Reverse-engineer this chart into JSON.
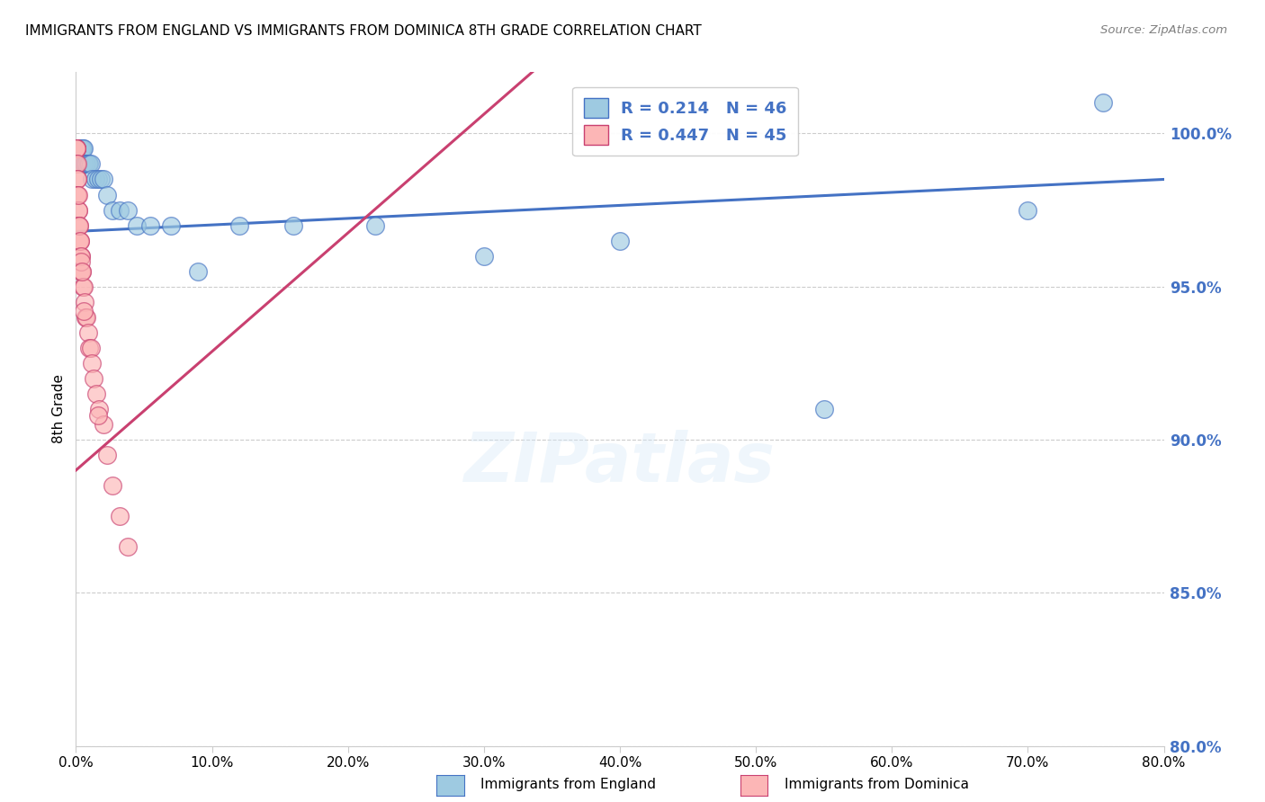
{
  "title": "IMMIGRANTS FROM ENGLAND VS IMMIGRANTS FROM DOMINICA 8TH GRADE CORRELATION CHART",
  "source": "Source: ZipAtlas.com",
  "ylabel": "8th Grade",
  "legend_label1": "Immigrants from England",
  "legend_label2": "Immigrants from Dominica",
  "R1": 0.214,
  "N1": 46,
  "R2": 0.447,
  "N2": 45,
  "color_england": "#9ecae1",
  "color_dominica": "#fcb6b6",
  "edge_england": "#4472c4",
  "edge_dominica": "#c94070",
  "trendline_england": "#4472c4",
  "trendline_dominica": "#c94070",
  "xlim": [
    0,
    80
  ],
  "ylim": [
    80,
    102
  ],
  "xticks": [
    0,
    10,
    20,
    30,
    40,
    50,
    60,
    70,
    80
  ],
  "yticks": [
    80,
    85,
    90,
    95,
    100
  ],
  "england_x": [
    0.05,
    0.08,
    0.1,
    0.12,
    0.15,
    0.18,
    0.2,
    0.22,
    0.25,
    0.28,
    0.3,
    0.33,
    0.35,
    0.38,
    0.4,
    0.45,
    0.5,
    0.55,
    0.6,
    0.65,
    0.7,
    0.8,
    0.9,
    1.0,
    1.1,
    1.2,
    1.4,
    1.6,
    1.8,
    2.0,
    2.3,
    2.7,
    3.2,
    3.8,
    4.5,
    5.5,
    7.0,
    9.0,
    12.0,
    16.0,
    22.0,
    30.0,
    40.0,
    55.0,
    70.0,
    75.5
  ],
  "england_y": [
    99.5,
    99.5,
    99.5,
    99.5,
    99.5,
    99.5,
    99.5,
    99.5,
    99.5,
    99.5,
    99.5,
    99.5,
    99.5,
    99.5,
    99.5,
    99.5,
    99.5,
    99.5,
    99.0,
    99.0,
    99.0,
    99.0,
    99.0,
    99.0,
    99.0,
    98.5,
    98.5,
    98.5,
    98.5,
    98.5,
    98.0,
    97.5,
    97.5,
    97.5,
    97.0,
    97.0,
    97.0,
    95.5,
    97.0,
    97.0,
    97.0,
    96.0,
    96.5,
    91.0,
    97.5,
    101.0
  ],
  "dominica_x": [
    0.02,
    0.04,
    0.05,
    0.06,
    0.07,
    0.08,
    0.09,
    0.1,
    0.12,
    0.14,
    0.16,
    0.18,
    0.2,
    0.22,
    0.25,
    0.28,
    0.32,
    0.36,
    0.4,
    0.45,
    0.5,
    0.55,
    0.62,
    0.7,
    0.8,
    0.9,
    1.0,
    1.1,
    1.2,
    1.3,
    1.5,
    1.7,
    2.0,
    2.3,
    2.7,
    3.2,
    3.8,
    0.15,
    0.25,
    0.3,
    0.35,
    0.4,
    0.45,
    1.6,
    0.6
  ],
  "dominica_y": [
    99.5,
    99.5,
    99.5,
    99.5,
    99.0,
    99.0,
    98.5,
    98.5,
    98.0,
    98.0,
    97.5,
    97.5,
    97.0,
    97.0,
    96.5,
    96.5,
    96.0,
    96.0,
    95.5,
    95.5,
    95.0,
    95.0,
    94.5,
    94.0,
    94.0,
    93.5,
    93.0,
    93.0,
    92.5,
    92.0,
    91.5,
    91.0,
    90.5,
    89.5,
    88.5,
    87.5,
    86.5,
    98.0,
    97.0,
    96.5,
    96.0,
    95.8,
    95.5,
    90.8,
    94.2
  ]
}
